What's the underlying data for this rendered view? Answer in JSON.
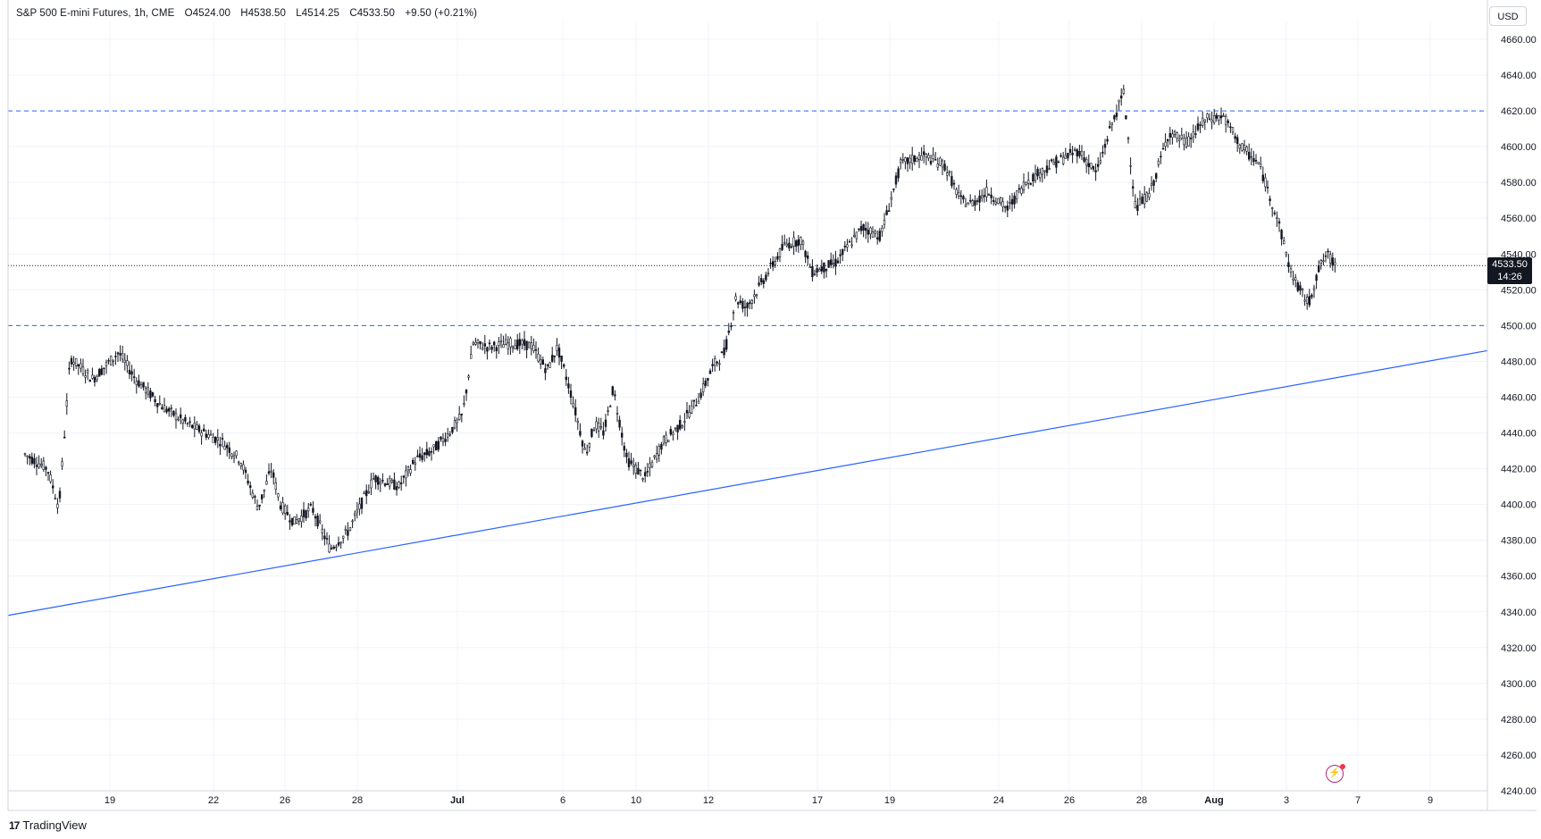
{
  "legend": {
    "title": "S&P 500 E-mini Futures, 1h, CME",
    "open": "O4524.00",
    "high": "H4538.50",
    "low": "L4514.25",
    "close": "C4533.50",
    "change": "+9.50 (+0.21%)"
  },
  "currency": "USD",
  "last_price": {
    "price": "4533.50",
    "countdown": "14:26"
  },
  "brand": {
    "logo_text": "17",
    "name": "TradingView"
  },
  "alert_icon": "lightning-alert-icon",
  "chart_data": {
    "type": "candlestick",
    "interval": "1h",
    "y_axis": {
      "min": 4240,
      "max": 4660,
      "ticks": [
        4240,
        4260,
        4280,
        4300,
        4320,
        4340,
        4360,
        4380,
        4400,
        4420,
        4440,
        4460,
        4480,
        4500,
        4520,
        4540,
        4560,
        4580,
        4600,
        4620,
        4640,
        4660
      ],
      "side": "right"
    },
    "x_axis": {
      "tick_labels": [
        "19",
        "22",
        "26",
        "28",
        "Jul",
        "6",
        "10",
        "12",
        "17",
        "19",
        "24",
        "26",
        "28",
        "Aug",
        "3",
        "7",
        "9"
      ]
    },
    "grid": true,
    "colors": {
      "candles": "#131722",
      "horizontal_levels": "#2962ff",
      "trendline": "#2962ff",
      "last_price_line": "#131722"
    },
    "horizontal_levels": [
      4620,
      4500
    ],
    "trendline": {
      "start": {
        "date": "Jun 16",
        "price": 4338
      },
      "end": {
        "date": "Aug 11",
        "price": 4486
      }
    },
    "last_price": 4533.5,
    "price_path": [
      {
        "date": "Jun 16",
        "price": 4428
      },
      {
        "date": "Jun 17",
        "price": 4420
      },
      {
        "date": "Jun 17",
        "price": 4398
      },
      {
        "date": "Jun 17",
        "price": 4482
      },
      {
        "date": "Jun 18",
        "price": 4470
      },
      {
        "date": "Jun 19",
        "price": 4485
      },
      {
        "date": "Jun 19",
        "price": 4470
      },
      {
        "date": "Jun 20",
        "price": 4455
      },
      {
        "date": "Jun 21",
        "price": 4445
      },
      {
        "date": "Jun 21",
        "price": 4440
      },
      {
        "date": "Jun 22",
        "price": 4435
      },
      {
        "date": "Jun 23",
        "price": 4425
      },
      {
        "date": "Jun 24",
        "price": 4398
      },
      {
        "date": "Jun 25",
        "price": 4420
      },
      {
        "date": "Jun 25",
        "price": 4400
      },
      {
        "date": "Jun 26",
        "price": 4390
      },
      {
        "date": "Jun 26",
        "price": 4398
      },
      {
        "date": "Jun 27",
        "price": 4375
      },
      {
        "date": "Jun 27",
        "price": 4385
      },
      {
        "date": "Jun 28",
        "price": 4415
      },
      {
        "date": "Jun 29",
        "price": 4410
      },
      {
        "date": "Jun 29",
        "price": 4425
      },
      {
        "date": "Jun 30",
        "price": 4430
      },
      {
        "date": "Jun 30",
        "price": 4440
      },
      {
        "date": "Jul 1",
        "price": 4450
      },
      {
        "date": "Jul 1",
        "price": 4490
      },
      {
        "date": "Jul 2",
        "price": 4488
      },
      {
        "date": "Jul 3",
        "price": 4490
      },
      {
        "date": "Jul 4",
        "price": 4489
      },
      {
        "date": "Jul 5",
        "price": 4475
      },
      {
        "date": "Jul 5",
        "price": 4488
      },
      {
        "date": "Jul 6",
        "price": 4460
      },
      {
        "date": "Jul 7",
        "price": 4428
      },
      {
        "date": "Jul 7",
        "price": 4445
      },
      {
        "date": "Jul 8",
        "price": 4440
      },
      {
        "date": "Jul 8",
        "price": 4465
      },
      {
        "date": "Jul 9",
        "price": 4425
      },
      {
        "date": "Jul 10",
        "price": 4415
      },
      {
        "date": "Jul 10",
        "price": 4435
      },
      {
        "date": "Jul 11",
        "price": 4445
      },
      {
        "date": "Jul 11",
        "price": 4460
      },
      {
        "date": "Jul 12",
        "price": 4478
      },
      {
        "date": "Jul 12",
        "price": 4485
      },
      {
        "date": "Jul 13",
        "price": 4515
      },
      {
        "date": "Jul 13",
        "price": 4510
      },
      {
        "date": "Jul 14",
        "price": 4525
      },
      {
        "date": "Jul 15",
        "price": 4545
      },
      {
        "date": "Jul 16",
        "price": 4548
      },
      {
        "date": "Jul 16",
        "price": 4530
      },
      {
        "date": "Jul 17",
        "price": 4535
      },
      {
        "date": "Jul 18",
        "price": 4555
      },
      {
        "date": "Jul 18",
        "price": 4550
      },
      {
        "date": "Jul 19",
        "price": 4590
      },
      {
        "date": "Jul 20",
        "price": 4595
      },
      {
        "date": "Jul 21",
        "price": 4590
      },
      {
        "date": "Jul 22",
        "price": 4570
      },
      {
        "date": "Jul 22",
        "price": 4568
      },
      {
        "date": "Jul 23",
        "price": 4575
      },
      {
        "date": "Jul 24",
        "price": 4565
      },
      {
        "date": "Jul 24",
        "price": 4580
      },
      {
        "date": "Jul 25",
        "price": 4590
      },
      {
        "date": "Jul 26",
        "price": 4598
      },
      {
        "date": "Jul 26",
        "price": 4585
      },
      {
        "date": "Jul 27",
        "price": 4612
      },
      {
        "date": "Jul 27",
        "price": 4630
      },
      {
        "date": "Jul 27",
        "price": 4565
      },
      {
        "date": "Jul 28",
        "price": 4575
      },
      {
        "date": "Jul 29",
        "price": 4608
      },
      {
        "date": "Jul 30",
        "price": 4602
      },
      {
        "date": "Jul 31",
        "price": 4615
      },
      {
        "date": "Aug 1",
        "price": 4617
      },
      {
        "date": "Aug 1",
        "price": 4600
      },
      {
        "date": "Aug 2",
        "price": 4590
      },
      {
        "date": "Aug 2",
        "price": 4560
      },
      {
        "date": "Aug 3",
        "price": 4530
      },
      {
        "date": "Aug 3",
        "price": 4520
      },
      {
        "date": "Aug 4",
        "price": 4512
      },
      {
        "date": "Aug 4",
        "price": 4530
      },
      {
        "date": "Aug 5",
        "price": 4540
      },
      {
        "date": "Aug 5",
        "price": 4533.5
      }
    ]
  }
}
